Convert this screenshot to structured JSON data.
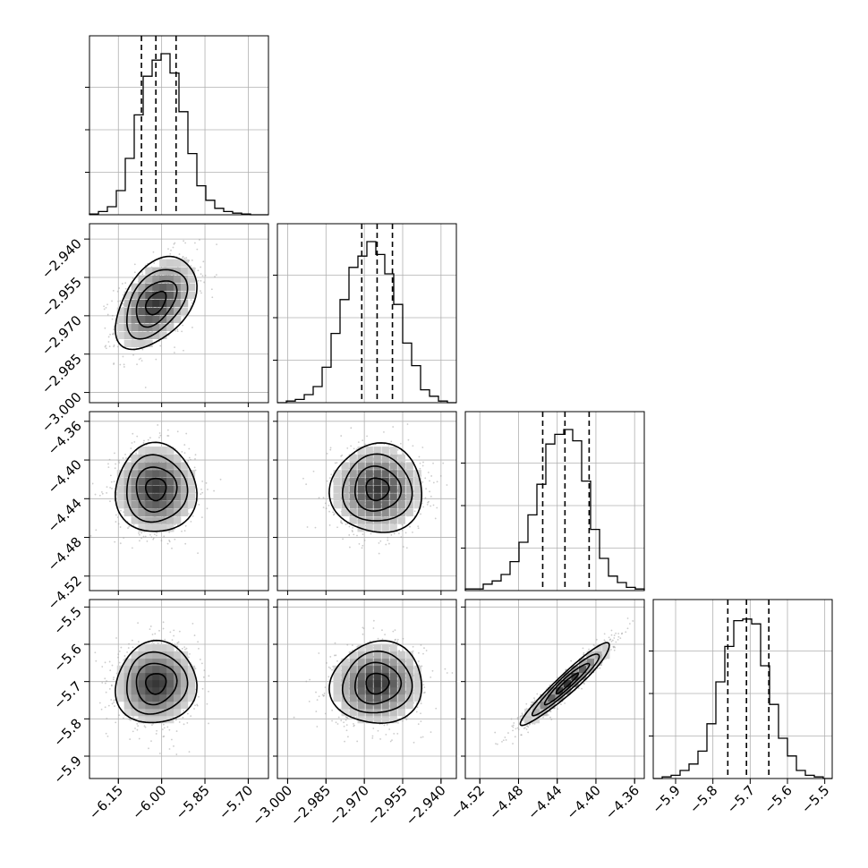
{
  "chart_data": {
    "type": "corner",
    "title": "",
    "grid": true,
    "n_params": 4,
    "parameters": [
      {
        "quantiles": [
          -6.07,
          -6.02,
          -5.95
        ],
        "range": [
          -6.25,
          -5.63
        ],
        "hist_x": [
          -6.238,
          -6.207,
          -6.176,
          -6.145,
          -6.114,
          -6.083,
          -6.052,
          -6.021,
          -5.99,
          -5.959,
          -5.928,
          -5.897,
          -5.866,
          -5.835,
          -5.804,
          -5.773,
          -5.742,
          -5.711,
          -5.68,
          -5.649
        ],
        "hist_density": [
          0.005,
          0.02,
          0.05,
          0.15,
          0.35,
          0.62,
          0.86,
          0.96,
          1.0,
          0.88,
          0.64,
          0.38,
          0.18,
          0.09,
          0.04,
          0.02,
          0.01,
          0.005,
          0,
          0
        ]
      },
      {
        "quantiles": [
          -2.971,
          -2.965,
          -2.959
        ],
        "range": [
          -3.004,
          -2.934
        ],
        "hist_x": [
          -3.0025,
          -2.999,
          -2.9955,
          -2.992,
          -2.9885,
          -2.985,
          -2.9815,
          -2.978,
          -2.9745,
          -2.971,
          -2.9675,
          -2.964,
          -2.9605,
          -2.957,
          -2.9535,
          -2.95,
          -2.9465,
          -2.943,
          -2.9395,
          -2.936
        ],
        "hist_density": [
          0,
          0.01,
          0.02,
          0.05,
          0.1,
          0.22,
          0.43,
          0.64,
          0.84,
          0.91,
          1.0,
          0.92,
          0.8,
          0.61,
          0.37,
          0.23,
          0.08,
          0.04,
          0.01,
          0
        ]
      },
      {
        "quantiles": [
          -4.455,
          -4.432,
          -4.407
        ],
        "range": [
          -4.535,
          -4.35
        ],
        "hist_x": [
          -4.53,
          -4.521,
          -4.511,
          -4.502,
          -4.493,
          -4.484,
          -4.474,
          -4.465,
          -4.456,
          -4.447,
          -4.437,
          -4.428,
          -4.419,
          -4.41,
          -4.4,
          -4.391,
          -4.382,
          -4.373,
          -4.363,
          -4.354
        ],
        "hist_density": [
          0.01,
          0.01,
          0.04,
          0.06,
          0.1,
          0.18,
          0.3,
          0.47,
          0.66,
          0.91,
          0.97,
          1.0,
          0.93,
          0.68,
          0.38,
          0.2,
          0.09,
          0.05,
          0.02,
          0.01
        ]
      },
      {
        "quantiles": [
          -5.76,
          -5.71,
          -5.65
        ],
        "range": [
          -5.96,
          -5.48
        ],
        "hist_x": [
          -5.948,
          -5.924,
          -5.9,
          -5.876,
          -5.852,
          -5.828,
          -5.804,
          -5.78,
          -5.756,
          -5.732,
          -5.708,
          -5.684,
          -5.66,
          -5.636,
          -5.612,
          -5.588,
          -5.564,
          -5.54,
          -5.516,
          -5.492
        ],
        "hist_density": [
          0,
          0.01,
          0.02,
          0.05,
          0.09,
          0.17,
          0.34,
          0.6,
          0.82,
          0.98,
          0.99,
          0.96,
          0.7,
          0.46,
          0.25,
          0.14,
          0.05,
          0.02,
          0.01,
          0
        ]
      }
    ],
    "pairs": [
      {
        "row": 1,
        "col": 0,
        "mean": [
          -6.02,
          -2.965
        ],
        "sd": [
          0.07,
          0.009
        ],
        "rho": 0.45
      },
      {
        "row": 2,
        "col": 0,
        "mean": [
          -6.02,
          -4.43
        ],
        "sd": [
          0.07,
          0.023
        ],
        "rho": 0.0
      },
      {
        "row": 2,
        "col": 1,
        "mean": [
          -2.965,
          -4.43
        ],
        "sd": [
          0.009,
          0.023
        ],
        "rho": 0.0
      },
      {
        "row": 3,
        "col": 0,
        "mean": [
          -6.02,
          -5.705
        ],
        "sd": [
          0.07,
          0.055
        ],
        "rho": 0.05
      },
      {
        "row": 3,
        "col": 1,
        "mean": [
          -2.965,
          -5.705
        ],
        "sd": [
          0.009,
          0.055
        ],
        "rho": 0.05
      },
      {
        "row": 3,
        "col": 2,
        "mean": [
          -4.43,
          -5.705
        ],
        "sd": [
          0.023,
          0.055
        ],
        "rho": 0.95
      }
    ],
    "axes": {
      "x_ticks": [
        [
          "−6.15",
          "−6.00",
          "−5.85",
          "−5.70"
        ],
        [
          "−3.000",
          "−2.985",
          "−2.970",
          "−2.955",
          "−2.940"
        ],
        [
          "−4.52",
          "−4.48",
          "−4.44",
          "−4.40",
          "−4.36"
        ],
        [
          "−5.9",
          "−5.8",
          "−5.7",
          "−5.6",
          "−5.5"
        ]
      ],
      "x_tick_values": [
        [
          -6.15,
          -6.0,
          -5.85,
          -5.7
        ],
        [
          -3.0,
          -2.985,
          -2.97,
          -2.955,
          -2.94
        ],
        [
          -4.52,
          -4.48,
          -4.44,
          -4.4,
          -4.36
        ],
        [
          -5.9,
          -5.8,
          -5.7,
          -5.6,
          -5.5
        ]
      ],
      "y_ticks": [
        [],
        [
          "−2.940",
          "−2.955",
          "−2.970",
          "−2.985",
          "−3.000"
        ],
        [
          "−4.36",
          "−4.40",
          "−4.44",
          "−4.48",
          "−4.52"
        ],
        [
          "−5.5",
          "−5.6",
          "−5.7",
          "−5.8",
          "−5.9"
        ]
      ],
      "y_tick_values": [
        [],
        [
          -2.94,
          -2.955,
          -2.97,
          -2.985,
          -3.0
        ],
        [
          -4.36,
          -4.4,
          -4.44,
          -4.48,
          -4.52
        ],
        [
          -5.5,
          -5.6,
          -5.7,
          -5.8,
          -5.9
        ]
      ]
    }
  }
}
